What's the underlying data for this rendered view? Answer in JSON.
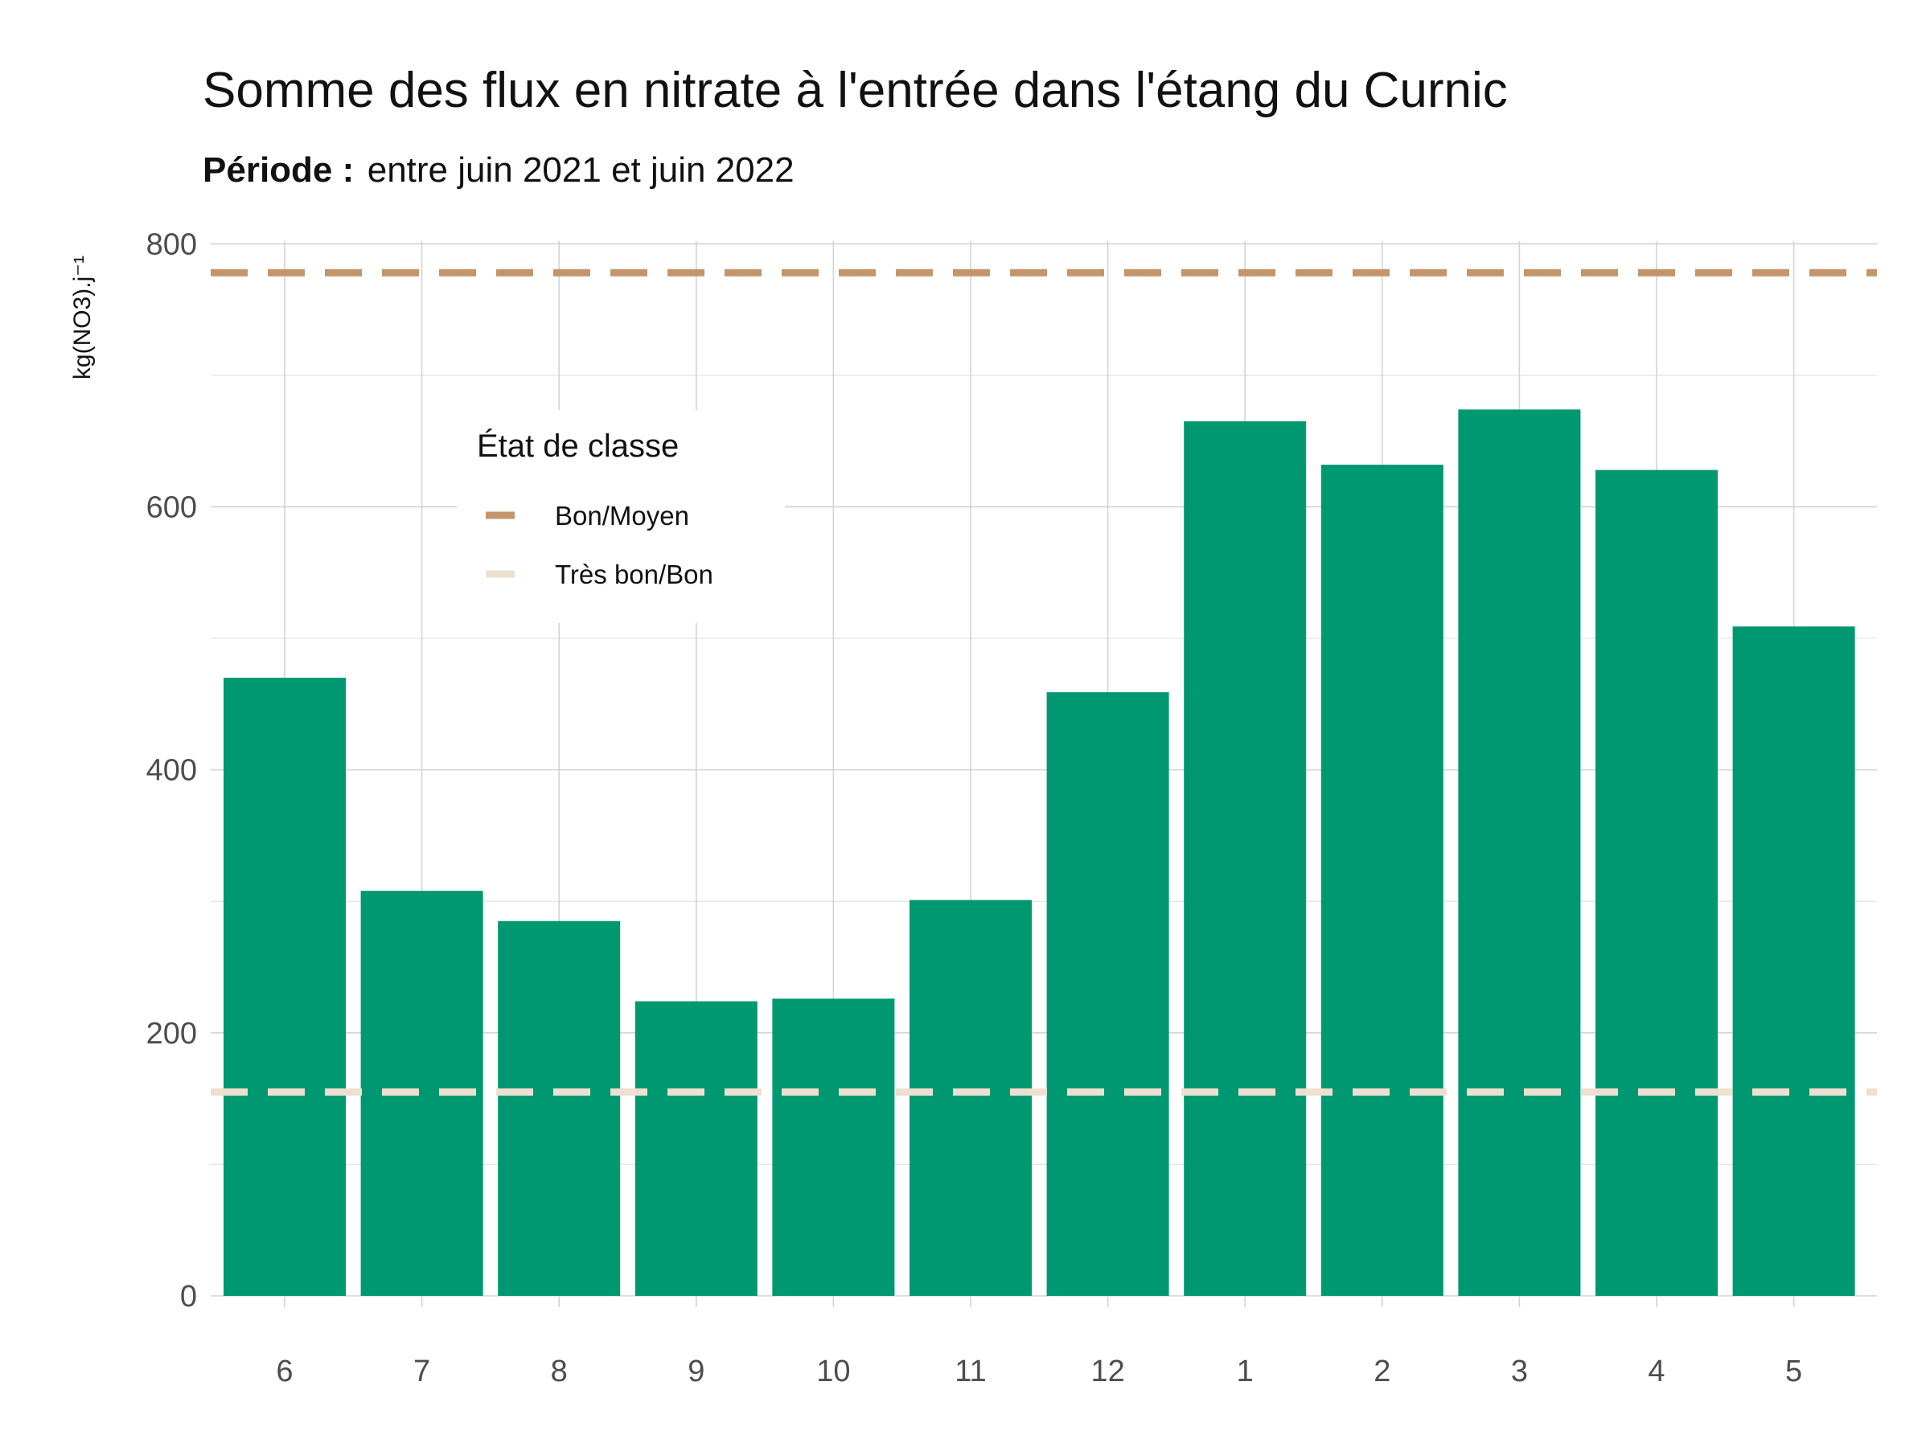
{
  "chart_data": {
    "type": "bar",
    "title": "Somme des flux en nitrate à l'entrée dans l'étang du Curnic",
    "subtitle_bold": "Période :",
    "subtitle_rest": "entre juin 2021 et juin 2022",
    "xlabel": "",
    "ylabel": "kg(NO3).j⁻¹",
    "categories": [
      "6",
      "7",
      "8",
      "9",
      "10",
      "11",
      "12",
      "1",
      "2",
      "3",
      "4",
      "5"
    ],
    "values": [
      470,
      308,
      285,
      224,
      226,
      301,
      459,
      665,
      632,
      674,
      628,
      509
    ],
    "ylim": [
      0,
      800
    ],
    "yticks": [
      0,
      200,
      400,
      600,
      800
    ],
    "grid": true,
    "bar_color": "#009870",
    "thresholds": [
      {
        "name": "Bon/Moyen",
        "value": 778,
        "color": "#c4956a",
        "style": "dashed"
      },
      {
        "name": "Très bon/Bon",
        "value": 155,
        "color": "#ede0d0",
        "style": "dashed"
      }
    ],
    "legend": {
      "title": "État de classe",
      "position": "inside-top-left"
    }
  }
}
